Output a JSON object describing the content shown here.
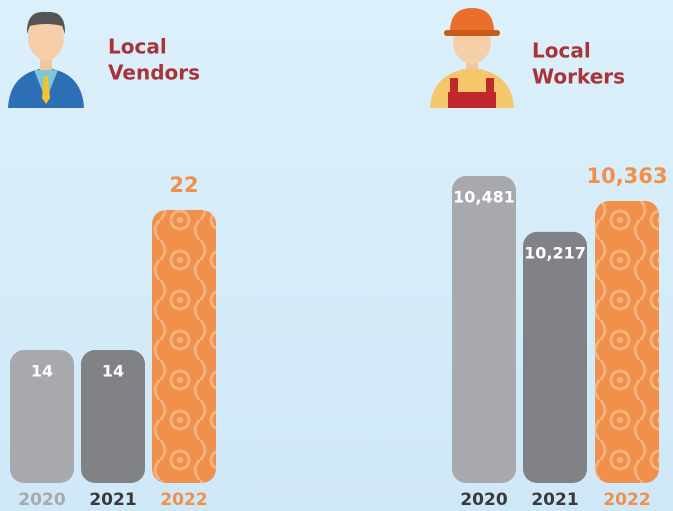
{
  "chart_data": [
    {
      "type": "bar",
      "title": [
        "Local",
        "Vendors"
      ],
      "categories": [
        "2020",
        "2021",
        "2022"
      ],
      "values": [
        14,
        14,
        22
      ],
      "colors": [
        "#a7a9ac",
        "#808285",
        "#f0904a"
      ],
      "label_colors": [
        "#a7a9ac",
        "#3a3a3c",
        "#f0904a"
      ],
      "ylim": [
        6.4,
        22
      ]
    },
    {
      "type": "bar",
      "title": [
        "Local",
        "Workers"
      ],
      "categories": [
        "2020",
        "2021",
        "2022"
      ],
      "values": [
        10481,
        10217,
        10363
      ],
      "value_labels": [
        "10,481",
        "10,217",
        "10,363"
      ],
      "colors": [
        "#a7a9ac",
        "#808285",
        "#f0904a"
      ],
      "label_colors": [
        "#3a3a3c",
        "#3a3a3c",
        "#f0904a"
      ],
      "ylim": [
        9030,
        10481
      ]
    }
  ]
}
